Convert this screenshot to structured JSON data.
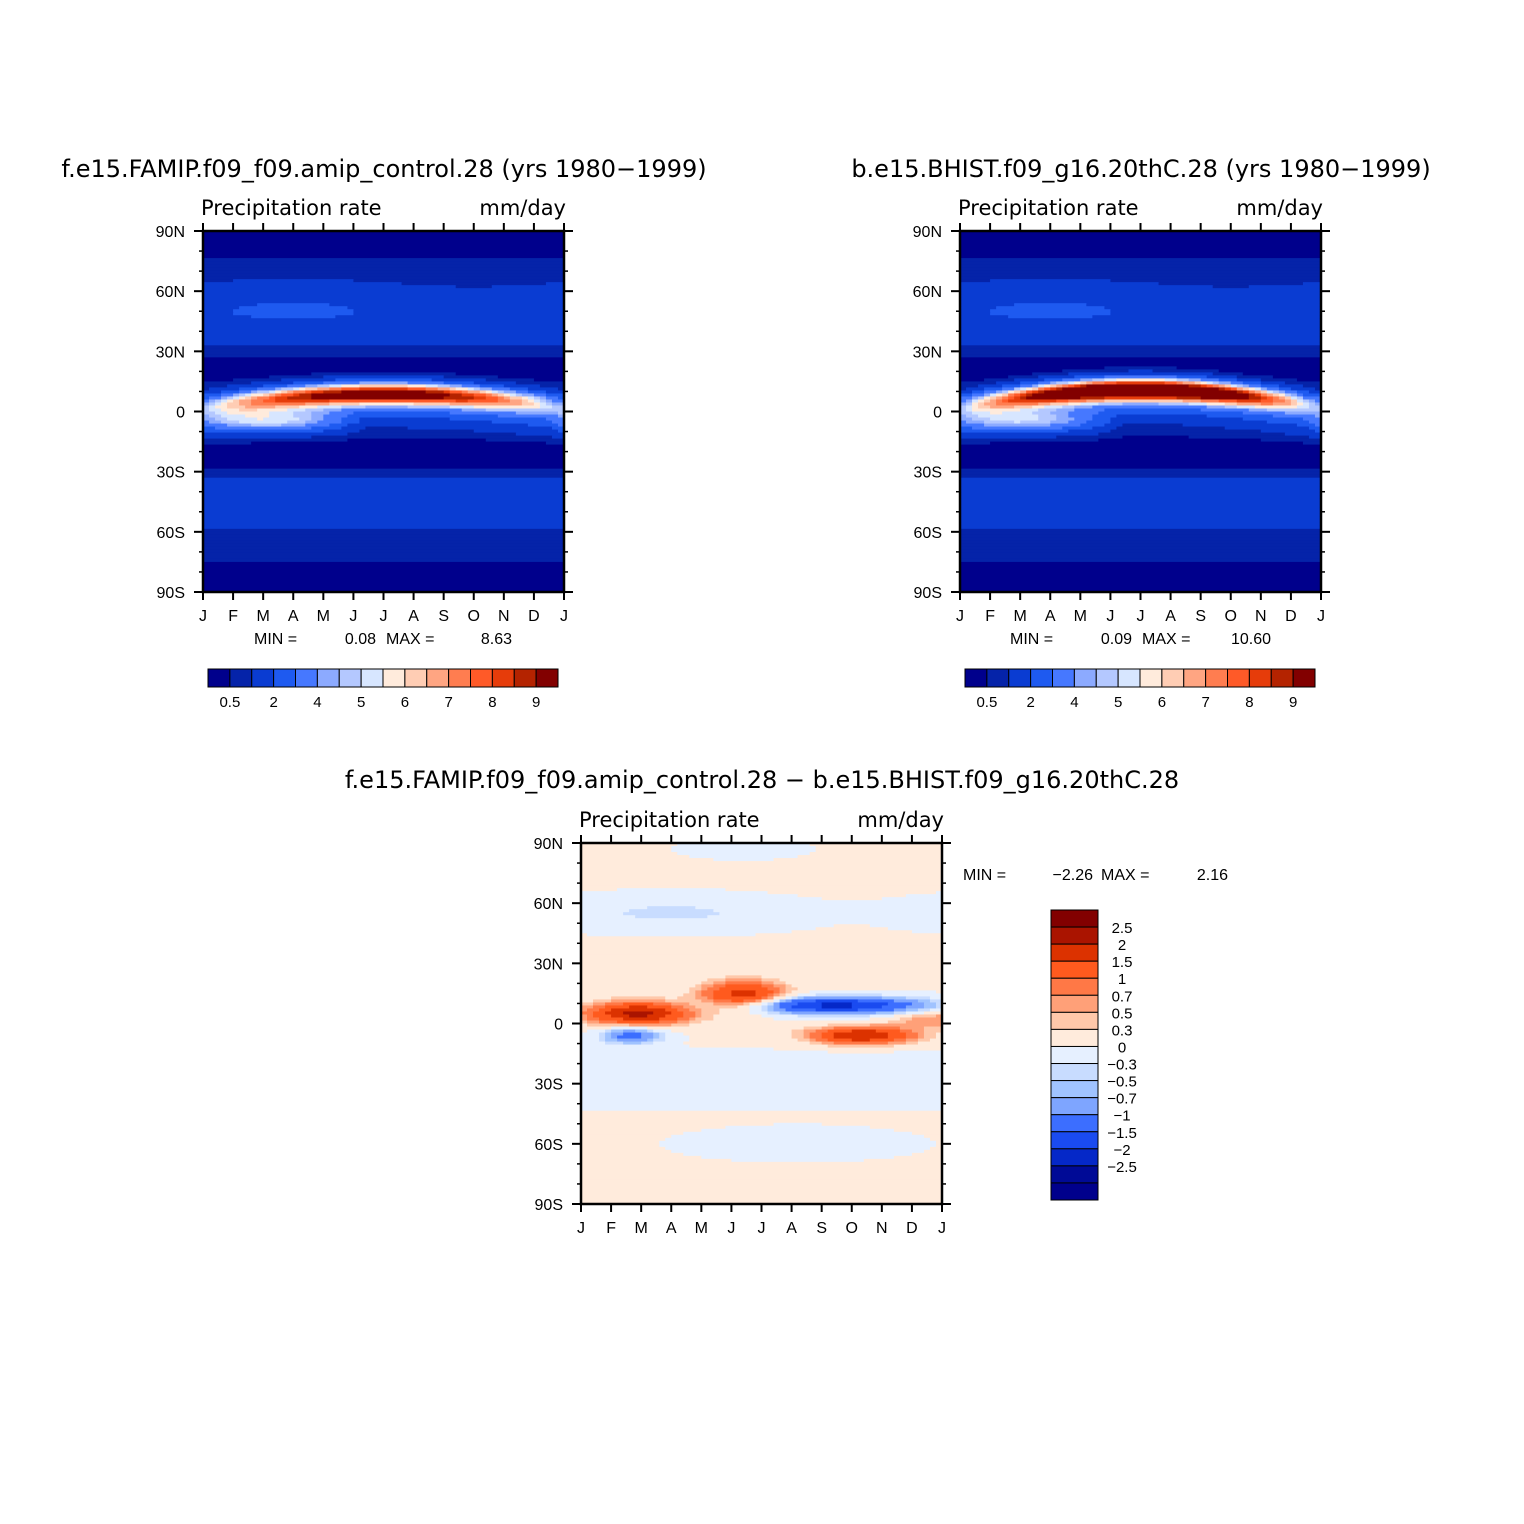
{
  "colors": {
    "precip_scale": [
      "#00008c",
      "#0523a9",
      "#0a3cd2",
      "#1e5af0",
      "#4678ff",
      "#8caaff",
      "#b4c8ff",
      "#d7e6ff",
      "#ffebdc",
      "#ffcdb4",
      "#ffa582",
      "#ff7d50",
      "#ff5a28",
      "#e63c0a",
      "#b42300",
      "#820000"
    ],
    "diff_scale": [
      "#820000",
      "#aa1400",
      "#dc3200",
      "#ff5a1e",
      "#ff7846",
      "#ffa078",
      "#ffc8aa",
      "#ffebdc",
      "#e6f0ff",
      "#c8dcff",
      "#a0c3ff",
      "#7ea5ff",
      "#3c6eff",
      "#1a4bf0",
      "#0528c8",
      "#000a96",
      "#00008c"
    ]
  },
  "chart_data": [
    {
      "type": "heatmap",
      "title": "f.e15.FAMIP.f09_f09.amip_control.28 (yrs 1980−1999)",
      "subtitle_left": "Precipitation rate",
      "subtitle_right": "mm/day",
      "x_ticks": [
        "J",
        "F",
        "M",
        "A",
        "M",
        "J",
        "J",
        "A",
        "S",
        "O",
        "N",
        "D",
        "J"
      ],
      "y_ticks": [
        "90N",
        "60N",
        "30N",
        "0",
        "30S",
        "60S",
        "90S"
      ],
      "ylim": [
        -90,
        90
      ],
      "min_label": "MIN =",
      "min_value": "0.08",
      "max_label": "MAX =",
      "max_value": "8.63",
      "itcz_lat_start": 3,
      "itcz_lat_peak": 9,
      "itcz_peak_value": 8.63,
      "colorbar_labels": [
        "0.5",
        "2",
        "4",
        "5",
        "6",
        "7",
        "8",
        "9"
      ]
    },
    {
      "type": "heatmap",
      "title": "b.e15.BHIST.f09_g16.20thC.28 (yrs 1980−1999)",
      "subtitle_left": "Precipitation rate",
      "subtitle_right": "mm/day",
      "x_ticks": [
        "J",
        "F",
        "M",
        "A",
        "M",
        "J",
        "J",
        "A",
        "S",
        "O",
        "N",
        "D",
        "J"
      ],
      "y_ticks": [
        "90N",
        "60N",
        "30N",
        "0",
        "30S",
        "60S",
        "90S"
      ],
      "ylim": [
        -90,
        90
      ],
      "min_label": "MIN =",
      "min_value": "0.09",
      "max_label": "MAX =",
      "max_value": "10.60",
      "itcz_lat_start": 3,
      "itcz_lat_peak": 11,
      "itcz_peak_value": 10.6,
      "colorbar_labels": [
        "0.5",
        "2",
        "4",
        "5",
        "6",
        "7",
        "8",
        "9"
      ]
    },
    {
      "type": "heatmap",
      "title": "f.e15.FAMIP.f09_f09.amip_control.28 − b.e15.BHIST.f09_g16.20thC.28",
      "subtitle_left": "Precipitation rate",
      "subtitle_right": "mm/day",
      "x_ticks": [
        "J",
        "F",
        "M",
        "A",
        "M",
        "J",
        "J",
        "A",
        "S",
        "O",
        "N",
        "D",
        "J"
      ],
      "y_ticks": [
        "90N",
        "60N",
        "30N",
        "0",
        "30S",
        "60S",
        "90S"
      ],
      "ylim": [
        -90,
        90
      ],
      "min_label": "MIN =",
      "min_value": "−2.26",
      "max_label": "MAX =",
      "max_value": "2.16",
      "colorbar_labels": [
        "2.5",
        "2",
        "1.5",
        "1",
        "0.7",
        "0.5",
        "0.3",
        "0",
        "−0.3",
        "−0.5",
        "−0.7",
        "−1",
        "−1.5",
        "−2",
        "−2.5"
      ]
    }
  ]
}
